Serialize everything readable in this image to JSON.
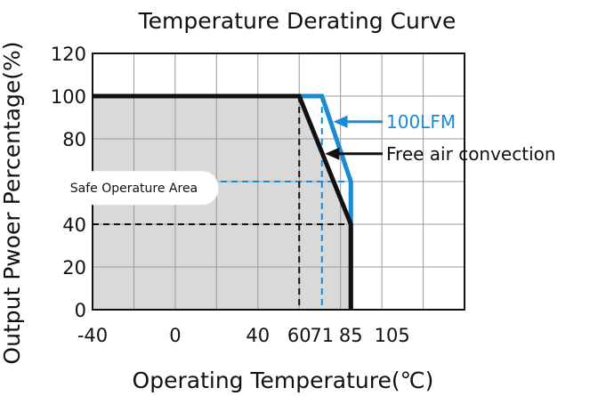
{
  "chart_data": {
    "type": "line",
    "title": "Temperature Derating Curve",
    "xlabel": "Operating Temperature(℃)",
    "ylabel": "Output Pwoer Percentage(%)",
    "xlim": [
      -40,
      140
    ],
    "ylim": [
      0,
      120
    ],
    "x_ticks": [
      {
        "value": -40,
        "label": "-40"
      },
      {
        "value": 0,
        "label": "0"
      },
      {
        "value": 40,
        "label": "40"
      },
      {
        "value": 60,
        "label": "60"
      },
      {
        "value": 71,
        "label": "71"
      },
      {
        "value": 85,
        "label": "85"
      },
      {
        "value": 105,
        "label": "105"
      }
    ],
    "y_ticks": [
      {
        "value": 0,
        "label": "0"
      },
      {
        "value": 20,
        "label": "20"
      },
      {
        "value": 40,
        "label": "40"
      },
      {
        "value": 60,
        "label": "60"
      },
      {
        "value": 80,
        "label": "80"
      },
      {
        "value": 100,
        "label": "100"
      },
      {
        "value": 120,
        "label": "120"
      }
    ],
    "grid": true,
    "series": [
      {
        "name": "100LFM",
        "color": "#1a8ad4",
        "points": [
          [
            -40,
            100
          ],
          [
            71,
            100
          ],
          [
            85,
            60
          ],
          [
            85,
            0
          ]
        ],
        "label_y": 88
      },
      {
        "name": "Free air convection",
        "color": "#111111",
        "points": [
          [
            -40,
            100
          ],
          [
            60,
            100
          ],
          [
            85,
            40
          ],
          [
            85,
            0
          ]
        ],
        "label_y": 73
      }
    ],
    "guide_lines": [
      {
        "series": "100LFM",
        "x": 71,
        "y": 60,
        "color": "#1a8ad4"
      },
      {
        "series": "Free air convection",
        "x": 60,
        "y": 40,
        "color": "#111111"
      }
    ],
    "region": {
      "label": "Safe Operature Area",
      "fill": "#d9d9d9",
      "label_x": -20,
      "label_y": 57
    }
  }
}
